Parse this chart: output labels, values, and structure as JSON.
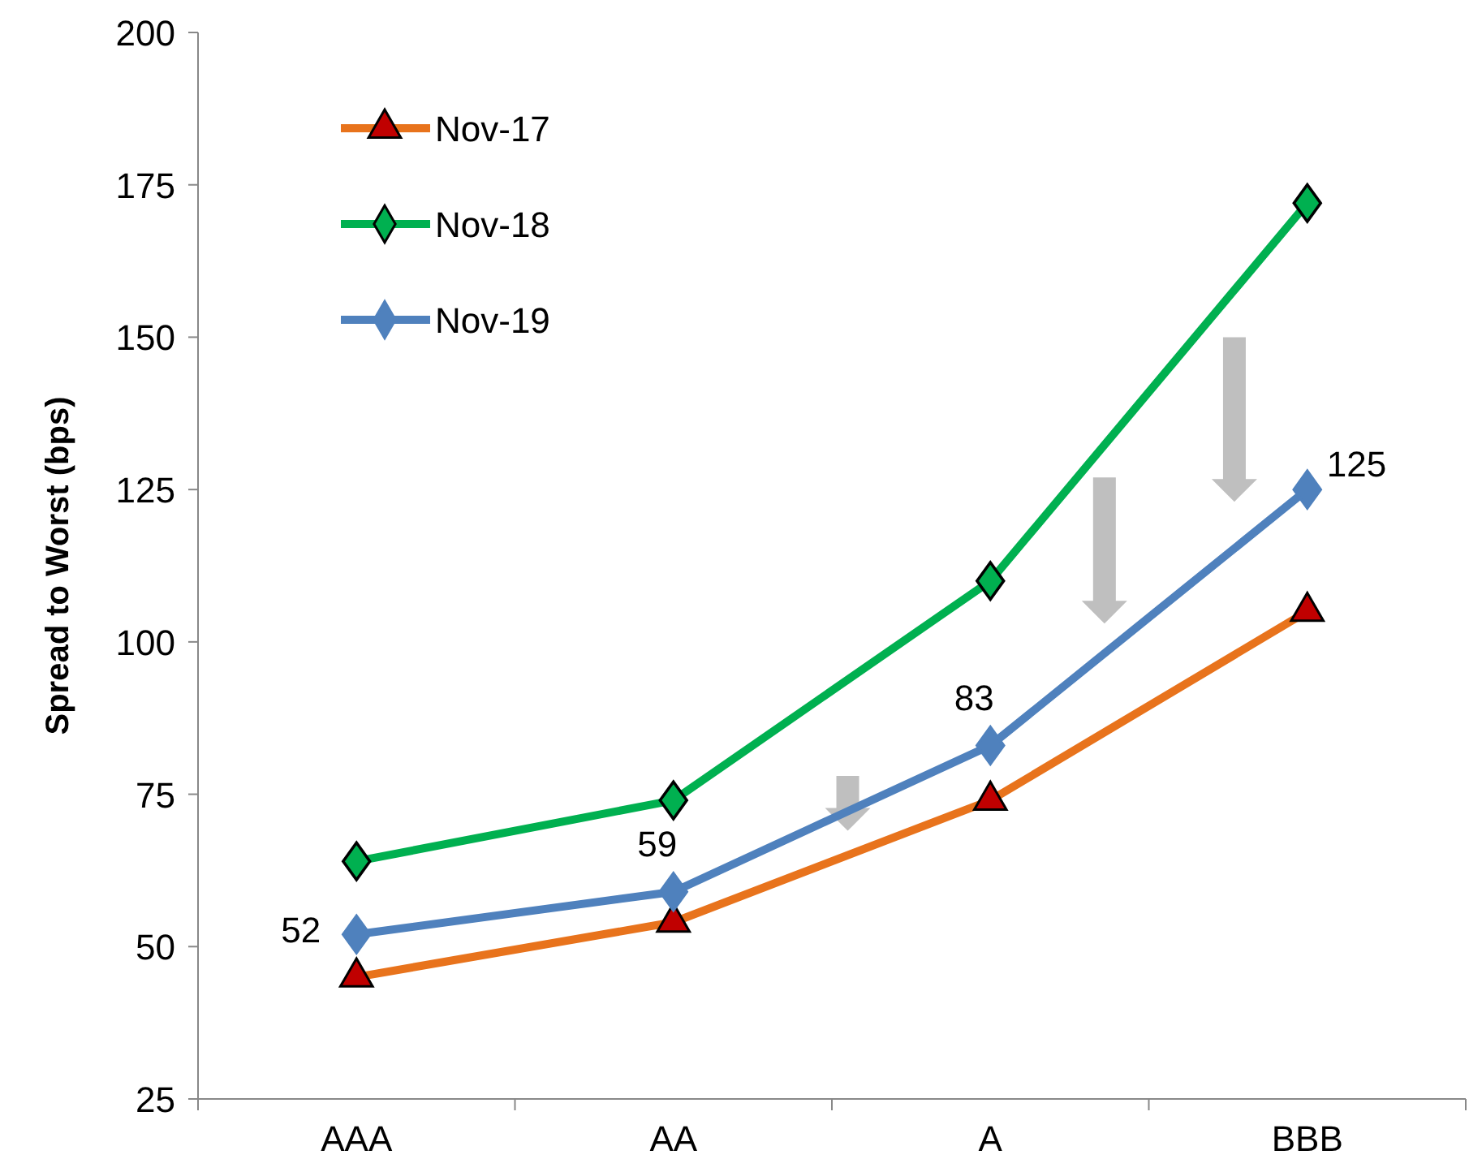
{
  "chart_data": {
    "type": "line",
    "ylabel": "Spread to Worst (bps)",
    "categories": [
      "AAA",
      "AA",
      "A",
      "BBB"
    ],
    "series": [
      {
        "name": "Nov-17",
        "color": "#e8731c",
        "values": [
          45,
          54,
          74,
          105
        ],
        "marker": "triangle"
      },
      {
        "name": "Nov-18",
        "color": "#00b050",
        "values": [
          64,
          74,
          110,
          172
        ],
        "marker": "diamond"
      },
      {
        "name": "Nov-19",
        "color": "#4f81bd",
        "values": [
          52,
          59,
          83,
          125
        ],
        "marker": "diamond",
        "value_labels": [
          "52",
          "59",
          "83",
          "125"
        ]
      }
    ],
    "ylim": [
      25,
      200
    ],
    "yticks": [
      25,
      50,
      75,
      100,
      125,
      150,
      175,
      200
    ],
    "grid": false,
    "legend": "top left",
    "line_style": "solid"
  }
}
